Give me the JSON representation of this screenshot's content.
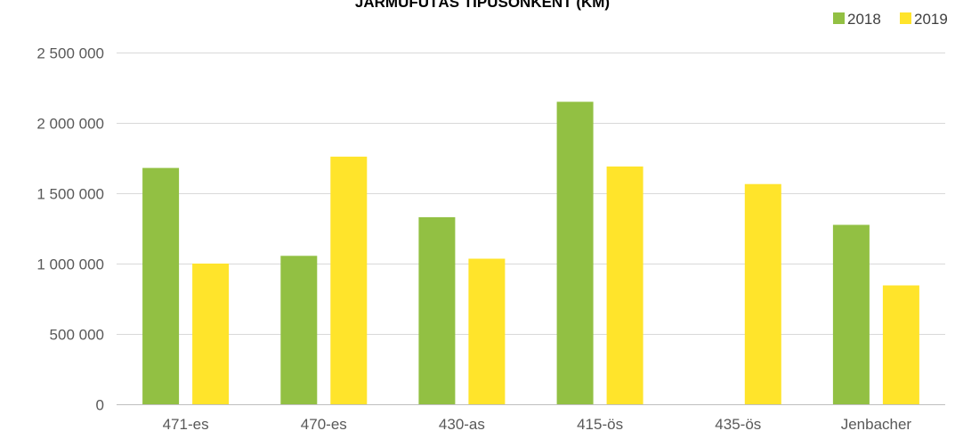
{
  "chart_data": {
    "type": "bar",
    "title": "JÁRMŰFUTÁS TÍPUSONKÉNT (KM)",
    "xlabel": "",
    "ylabel": "",
    "categories": [
      "471-es",
      "470-es",
      "430-as",
      "415-ös",
      "435-ös",
      "Jenbacher"
    ],
    "series": [
      {
        "name": "2018",
        "color": "#92c043",
        "values": [
          1680000,
          1055000,
          1330000,
          2150000,
          0,
          1275000
        ]
      },
      {
        "name": "2019",
        "color": "#ffe42b",
        "values": [
          1000000,
          1760000,
          1035000,
          1690000,
          1565000,
          845000
        ]
      }
    ],
    "ylim": [
      0,
      2500000
    ],
    "yticks": [
      0,
      500000,
      1000000,
      1500000,
      2000000,
      2500000
    ],
    "ytick_labels": [
      "0",
      "500 000",
      "1 000 000",
      "1 500 000",
      "2 000 000",
      "2 500 000"
    ],
    "grid": true,
    "legend_position": "top-right"
  }
}
